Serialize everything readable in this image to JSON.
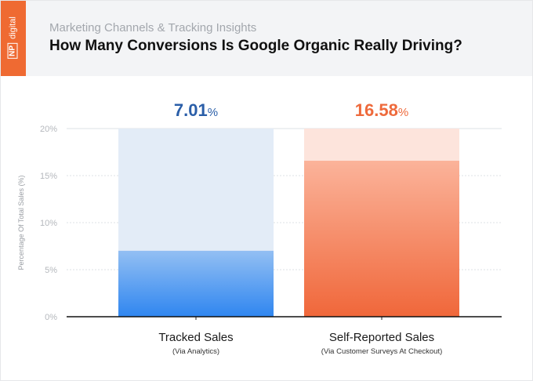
{
  "header": {
    "logo": "NP digital",
    "subtitle": "Marketing Channels & Tracking Insights",
    "title": "How Many Conversions Is Google Organic Really Driving?"
  },
  "colors": {
    "brand": "#ef6a32",
    "blue": "#2f86f0",
    "blue_light": "#e3ecf7",
    "blue_label": "#2a5ea8",
    "orange": "#f0673a",
    "orange_light": "#fde4dc",
    "orange_label": "#ee6a3c"
  },
  "chart_data": {
    "type": "bar",
    "title": "How Many Conversions Is Google Organic Really Driving?",
    "ylabel": "Percentage Of Total Sales (%)",
    "xlabel": "",
    "ylim": [
      0,
      20
    ],
    "yticks": [
      0,
      5,
      10,
      15,
      20
    ],
    "ytick_labels": [
      "0%",
      "5%",
      "10%",
      "15%",
      "20%"
    ],
    "categories": [
      "Tracked Sales",
      "Self-Reported Sales"
    ],
    "category_sublabels": [
      "(Via Analytics)",
      "(Via Customer Surveys At Checkout)"
    ],
    "values": [
      7.01,
      16.58
    ],
    "data_labels": [
      "7.01",
      "16.58"
    ],
    "data_label_suffix": "%",
    "grid": true
  }
}
